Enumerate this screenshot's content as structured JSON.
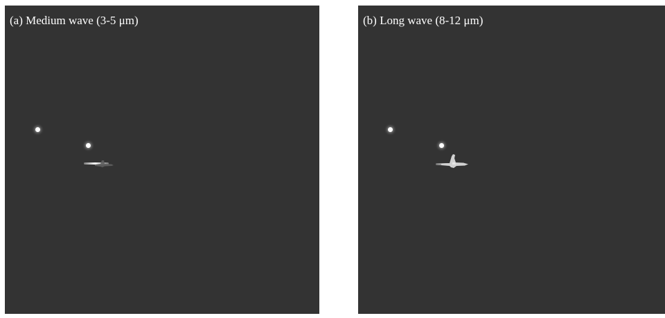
{
  "panels": [
    {
      "label": "(a) Medium wave (3-5 μm)"
    },
    {
      "label": "(b) Long wave (8-12 μm)"
    }
  ],
  "colors": {
    "background": "#333333",
    "hotspot": "#ffffff",
    "aircraft_medium_wave": "#6a6a6a",
    "aircraft_long_wave": "#d4d4d4"
  }
}
